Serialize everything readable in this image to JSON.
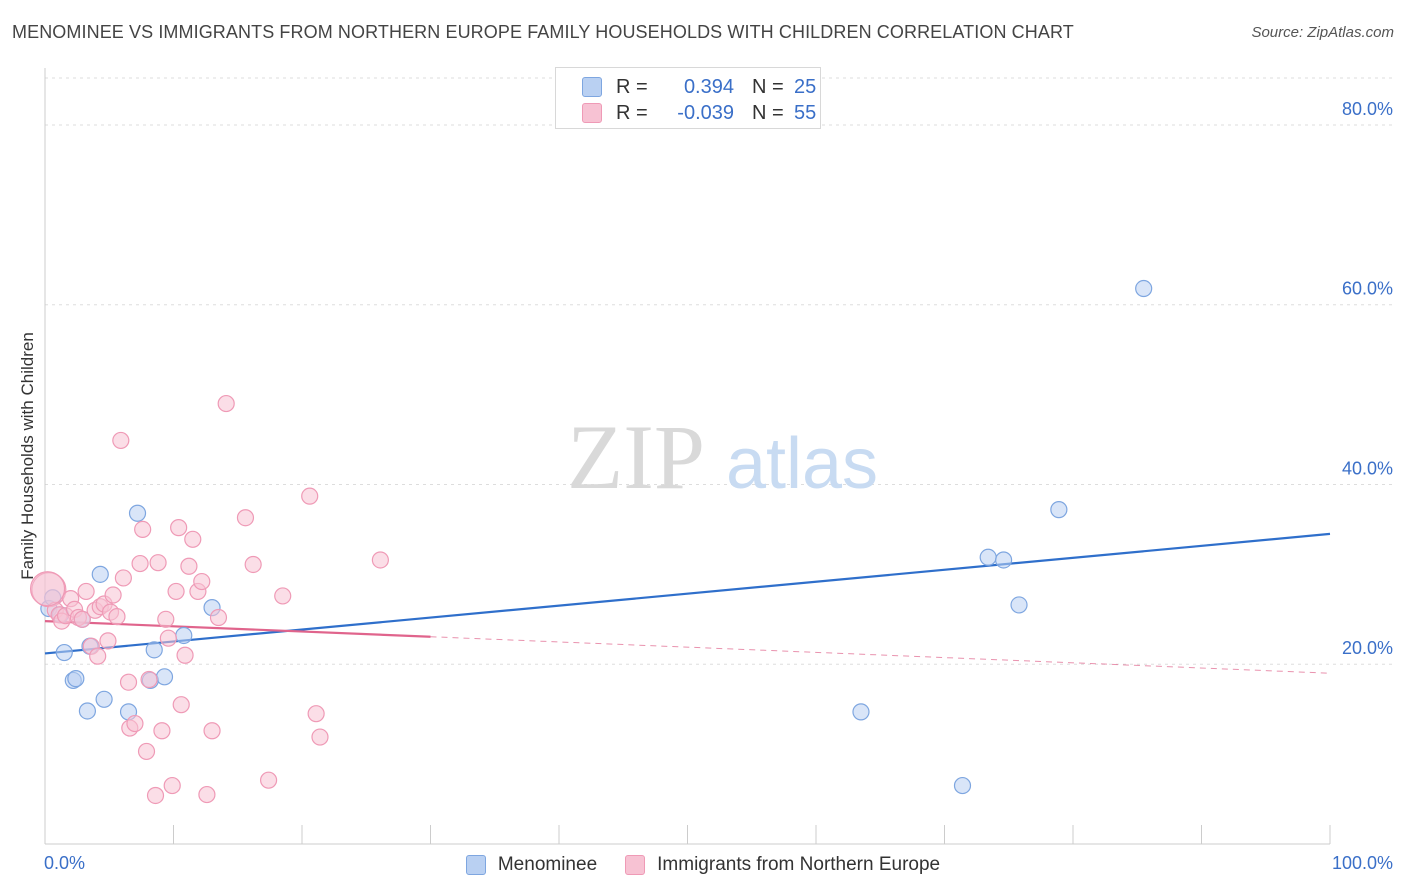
{
  "chart_data": {
    "type": "scatter",
    "title": "MENOMINEE VS IMMIGRANTS FROM NORTHERN EUROPE FAMILY HOUSEHOLDS WITH CHILDREN CORRELATION CHART",
    "source": "Source: ZipAtlas.com",
    "watermark": {
      "zip": "ZIP",
      "atlas": "atlas"
    },
    "xlabel": "",
    "ylabel": "Family Households with Children",
    "xlim": [
      0,
      100
    ],
    "ylim": [
      0,
      85
    ],
    "x_tick_labels": [
      {
        "value": 0,
        "label": "0.0%"
      },
      {
        "value": 100,
        "label": "100.0%"
      }
    ],
    "y_tick_labels": [
      {
        "value": 20,
        "label": "20.0%"
      },
      {
        "value": 40,
        "label": "40.0%"
      },
      {
        "value": 60,
        "label": "60.0%"
      },
      {
        "value": 80,
        "label": "80.0%"
      }
    ],
    "legend": [
      {
        "name": "Menominee",
        "r_label": "R =",
        "r": "0.394",
        "n_label": "N =",
        "n": "25"
      },
      {
        "name": "Immigrants from Northern Europe",
        "r_label": "R =",
        "r": "-0.039",
        "n_label": "N =",
        "n": "55"
      }
    ],
    "series": [
      {
        "name": "Menominee",
        "color": "#7ea6e0",
        "fill": "#b9d0f2",
        "line_color": "#2f6fcb",
        "trend": {
          "x0": 0,
          "y0": 21.2,
          "x1": 100,
          "y1": 34.5
        },
        "points": [
          [
            0.3,
            26.2
          ],
          [
            0.6,
            27.4
          ],
          [
            1.2,
            25.5
          ],
          [
            1.5,
            21.3
          ],
          [
            2.2,
            18.2
          ],
          [
            2.4,
            18.4
          ],
          [
            2.9,
            25.0
          ],
          [
            3.3,
            14.8
          ],
          [
            3.5,
            22.0
          ],
          [
            4.3,
            30.0
          ],
          [
            4.6,
            16.1
          ],
          [
            6.5,
            14.7
          ],
          [
            7.2,
            36.8
          ],
          [
            8.2,
            18.2
          ],
          [
            8.5,
            21.6
          ],
          [
            9.3,
            18.6
          ],
          [
            10.8,
            23.2
          ],
          [
            13.0,
            26.3
          ],
          [
            63.5,
            14.7
          ],
          [
            71.4,
            6.5
          ],
          [
            73.4,
            31.9
          ],
          [
            74.6,
            31.6
          ],
          [
            75.8,
            26.6
          ],
          [
            78.9,
            37.2
          ],
          [
            85.5,
            61.8
          ]
        ]
      },
      {
        "name": "Immigrants from Northern Europe",
        "color": "#ef9ab6",
        "fill": "#f7c2d3",
        "line_color": "#e0648c",
        "trend": {
          "x0": 0,
          "y0": 24.8,
          "x1": 100,
          "y1": 19.0
        },
        "trend_solid_until": 30,
        "points": [
          [
            0.3,
            28.3
          ],
          [
            0.8,
            26.0
          ],
          [
            1.1,
            25.5
          ],
          [
            1.3,
            24.8
          ],
          [
            1.6,
            25.4
          ],
          [
            2.0,
            27.3
          ],
          [
            2.3,
            26.1
          ],
          [
            2.6,
            25.2
          ],
          [
            2.9,
            25.0
          ],
          [
            3.2,
            28.1
          ],
          [
            3.6,
            22.0
          ],
          [
            3.9,
            26.0
          ],
          [
            4.1,
            20.9
          ],
          [
            4.3,
            26.4
          ],
          [
            4.6,
            26.7
          ],
          [
            4.9,
            22.6
          ],
          [
            5.1,
            25.8
          ],
          [
            5.3,
            27.7
          ],
          [
            5.6,
            25.3
          ],
          [
            5.9,
            44.9
          ],
          [
            6.1,
            29.6
          ],
          [
            6.5,
            18.0
          ],
          [
            6.6,
            12.9
          ],
          [
            7.0,
            13.4
          ],
          [
            7.4,
            31.2
          ],
          [
            7.6,
            35.0
          ],
          [
            7.9,
            10.3
          ],
          [
            8.1,
            18.3
          ],
          [
            8.6,
            5.4
          ],
          [
            8.8,
            31.3
          ],
          [
            9.1,
            12.6
          ],
          [
            9.4,
            25.0
          ],
          [
            9.6,
            22.9
          ],
          [
            9.9,
            6.5
          ],
          [
            10.2,
            28.1
          ],
          [
            10.4,
            35.2
          ],
          [
            10.6,
            15.5
          ],
          [
            10.9,
            21.0
          ],
          [
            11.2,
            30.9
          ],
          [
            11.5,
            33.9
          ],
          [
            11.9,
            28.1
          ],
          [
            12.2,
            29.2
          ],
          [
            12.6,
            5.5
          ],
          [
            13.0,
            12.6
          ],
          [
            13.5,
            25.2
          ],
          [
            14.1,
            49.0
          ],
          [
            15.6,
            36.3
          ],
          [
            16.2,
            31.1
          ],
          [
            17.4,
            7.1
          ],
          [
            18.5,
            27.6
          ],
          [
            20.6,
            38.7
          ],
          [
            21.1,
            14.5
          ],
          [
            21.4,
            11.9
          ],
          [
            26.1,
            31.6
          ],
          [
            0.2,
            28.4
          ]
        ]
      }
    ]
  }
}
